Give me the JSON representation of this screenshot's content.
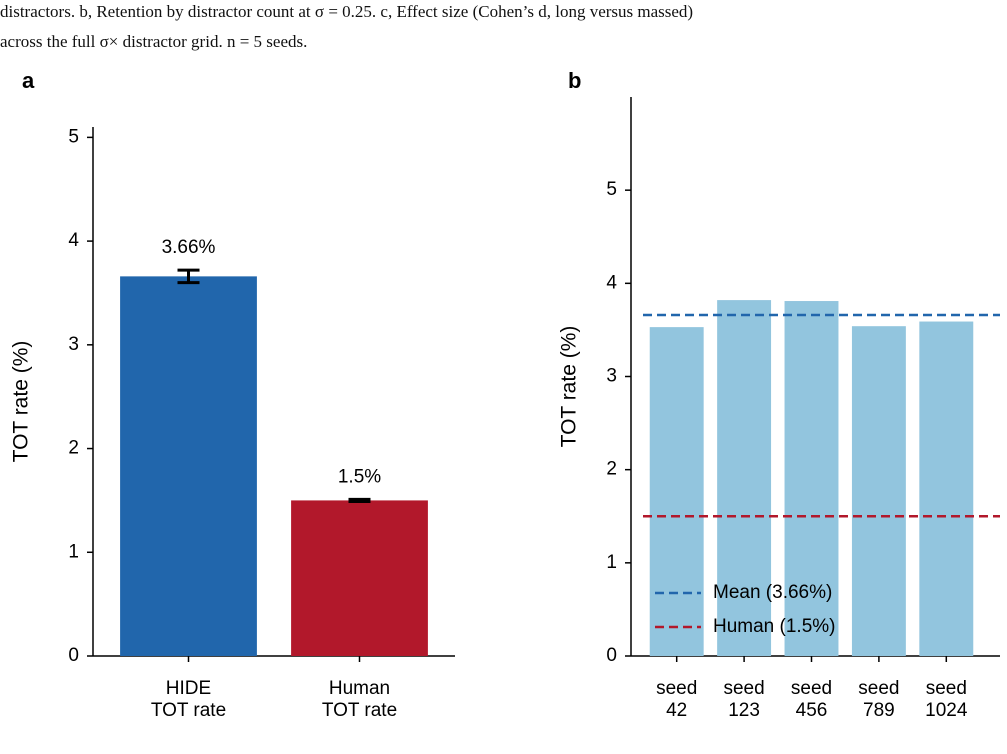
{
  "caption": [
    "distractors. b, Retention by distractor count at σ = 0.25. c, Effect size (Cohen’s d, long versus massed)",
    "across the full σ× distractor grid. n = 5 seeds."
  ],
  "chart_data": [
    {
      "type": "bar",
      "panel": "a",
      "y_label": "TOT rate (%)",
      "categories": [
        "HIDE TOT rate",
        "Human TOT rate"
      ],
      "values": [
        3.66,
        1.5
      ],
      "errors": [
        0.06,
        0.01
      ],
      "value_labels": [
        "3.66%",
        "1.5%"
      ],
      "colors": [
        "#2166ac",
        "#b2182b"
      ],
      "ylim": [
        0,
        5.1
      ],
      "yticks": [
        0,
        1,
        2,
        3,
        4,
        5
      ]
    },
    {
      "type": "bar",
      "panel": "b",
      "y_label": "TOT rate (%)",
      "categories": [
        "seed\n42",
        "seed\n123",
        "seed\n456",
        "seed\n789",
        "seed\n1024"
      ],
      "values": [
        3.53,
        3.82,
        3.81,
        3.54,
        3.59
      ],
      "color": "#92c5de",
      "ylim": [
        0,
        6.0
      ],
      "yticks": [
        0,
        1,
        2,
        3,
        4,
        5
      ],
      "reference_lines": [
        {
          "name": "Mean (3.66%)",
          "value": 3.66,
          "color": "#2166ac"
        },
        {
          "name": "Human (1.5%)",
          "value": 1.5,
          "color": "#b2182b"
        }
      ],
      "legend": "lower left"
    }
  ]
}
